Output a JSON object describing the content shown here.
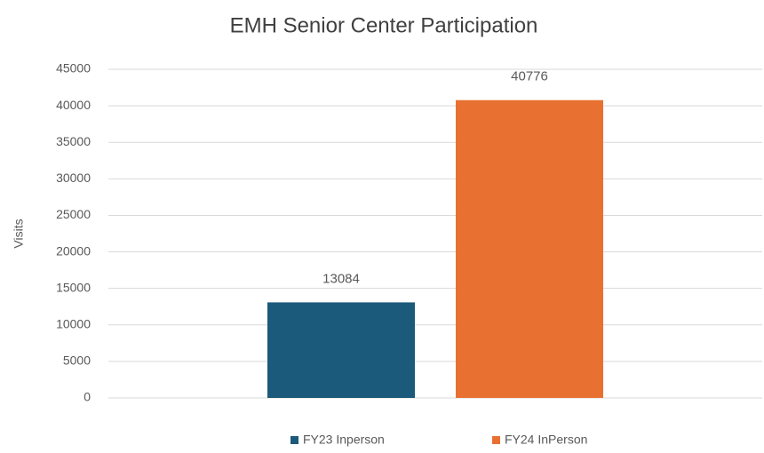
{
  "chart_data": {
    "type": "bar",
    "title": "EMH Senior Center Participation",
    "y_label": "Visits",
    "categories": [
      null
    ],
    "series": [
      {
        "name": "FY23 Inperson",
        "color": "#1b5a7a",
        "values": [
          13084
        ]
      },
      {
        "name": "FY24 InPerson",
        "color": "#e87131",
        "values": [
          40776
        ]
      }
    ],
    "ylim": [
      0,
      45000
    ],
    "yticks": [
      0,
      5000,
      10000,
      15000,
      20000,
      25000,
      30000,
      35000,
      40000,
      45000
    ],
    "grid": true,
    "legend": "bottom",
    "data_labels": true
  }
}
